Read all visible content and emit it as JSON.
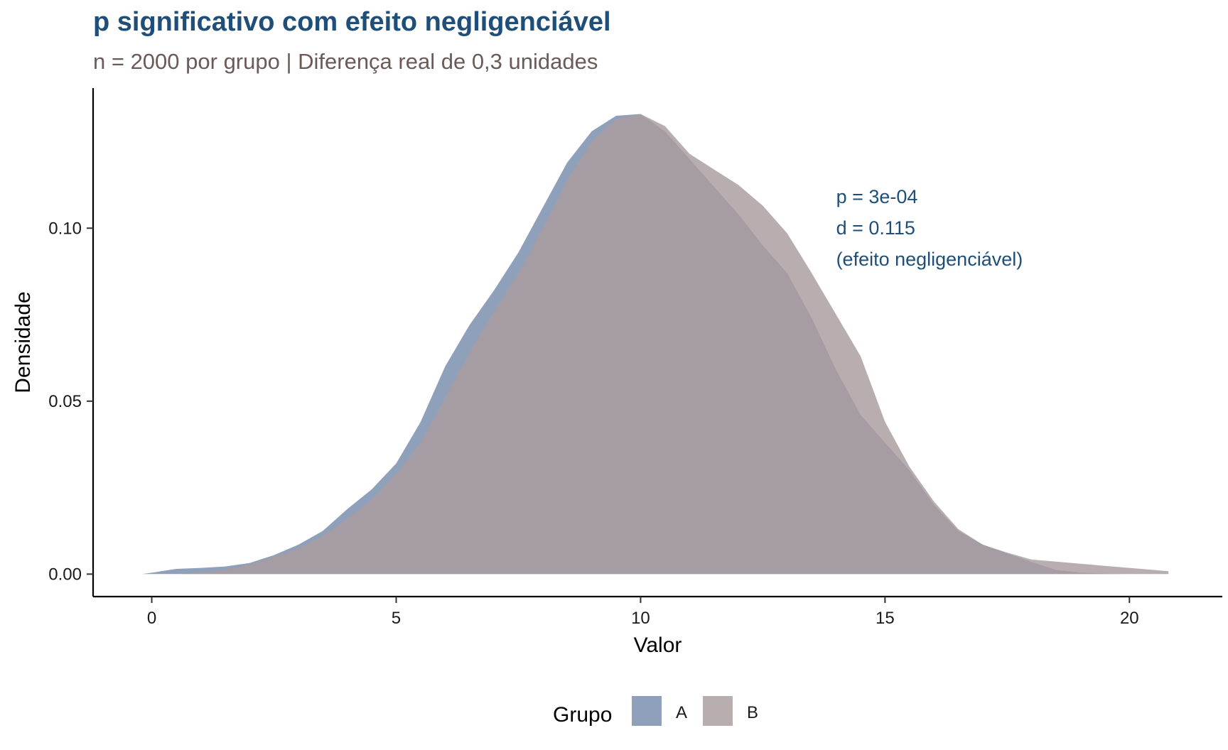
{
  "chart_data": {
    "type": "area",
    "title": "p significativo com efeito negligenciável",
    "subtitle": "n = 2000 por grupo | Diferença real de 0,3 unidades",
    "xlabel": "Valor",
    "ylabel": "Densidade",
    "xlim": [
      -1.2,
      21.9
    ],
    "ylim": [
      -0.0065,
      0.1405
    ],
    "x_ticks": [
      0,
      5,
      10,
      15,
      20
    ],
    "x_tick_labels": [
      "0",
      "5",
      "10",
      "15",
      "20"
    ],
    "y_ticks": [
      0.0,
      0.05,
      0.1
    ],
    "y_tick_labels": [
      "0.00",
      "0.05",
      "0.10"
    ],
    "grid": false,
    "legend": {
      "title": "Grupo",
      "position": "bottom"
    },
    "annotations": [
      "p = 3e-04",
      "d = 0.115",
      "(efeito negligenciável)"
    ],
    "series": [
      {
        "name": "A",
        "color": "#7f93b2",
        "points": [
          [
            -0.2,
            0
          ],
          [
            0,
            0.0004
          ],
          [
            0.5,
            0.0015
          ],
          [
            1,
            0.0018
          ],
          [
            1.5,
            0.0022
          ],
          [
            2,
            0.0032
          ],
          [
            2.5,
            0.0055
          ],
          [
            3,
            0.0085
          ],
          [
            3.5,
            0.0125
          ],
          [
            4,
            0.0188
          ],
          [
            4.5,
            0.0245
          ],
          [
            5,
            0.032
          ],
          [
            5.5,
            0.044
          ],
          [
            6,
            0.06
          ],
          [
            6.5,
            0.072
          ],
          [
            7,
            0.082
          ],
          [
            7.5,
            0.093
          ],
          [
            8,
            0.106
          ],
          [
            8.5,
            0.119
          ],
          [
            9,
            0.128
          ],
          [
            9.5,
            0.1325
          ],
          [
            10,
            0.133
          ],
          [
            10.5,
            0.128
          ],
          [
            11,
            0.12
          ],
          [
            11.5,
            0.112
          ],
          [
            12,
            0.104
          ],
          [
            12.5,
            0.095
          ],
          [
            13,
            0.087
          ],
          [
            13.5,
            0.074
          ],
          [
            14,
            0.059
          ],
          [
            14.5,
            0.046
          ],
          [
            15,
            0.038
          ],
          [
            15.5,
            0.03
          ],
          [
            16,
            0.02
          ],
          [
            16.5,
            0.0125
          ],
          [
            17,
            0.0085
          ],
          [
            17.5,
            0.006
          ],
          [
            18,
            0.0035
          ],
          [
            18.5,
            0.0012
          ],
          [
            19,
            0.0004
          ],
          [
            19.5,
            0.0001
          ],
          [
            20,
            0
          ]
        ]
      },
      {
        "name": "B",
        "color": "#a99c9e",
        "points": [
          [
            0.6,
            0
          ],
          [
            1,
            0.0004
          ],
          [
            1.5,
            0.0012
          ],
          [
            2,
            0.0028
          ],
          [
            2.5,
            0.005
          ],
          [
            3,
            0.0075
          ],
          [
            3.5,
            0.011
          ],
          [
            4,
            0.016
          ],
          [
            4.5,
            0.0215
          ],
          [
            5,
            0.029
          ],
          [
            5.5,
            0.038
          ],
          [
            6,
            0.051
          ],
          [
            6.5,
            0.064
          ],
          [
            7,
            0.076
          ],
          [
            7.5,
            0.087
          ],
          [
            8,
            0.1
          ],
          [
            8.5,
            0.114
          ],
          [
            9,
            0.125
          ],
          [
            9.5,
            0.1315
          ],
          [
            10,
            0.133
          ],
          [
            10.5,
            0.1295
          ],
          [
            11,
            0.1215
          ],
          [
            11.5,
            0.117
          ],
          [
            12,
            0.1125
          ],
          [
            12.5,
            0.1065
          ],
          [
            13,
            0.0985
          ],
          [
            13.5,
            0.087
          ],
          [
            14,
            0.075
          ],
          [
            14.5,
            0.063
          ],
          [
            15,
            0.044
          ],
          [
            15.5,
            0.031
          ],
          [
            16,
            0.021
          ],
          [
            16.5,
            0.013
          ],
          [
            17,
            0.0085
          ],
          [
            17.5,
            0.0062
          ],
          [
            18,
            0.0042
          ],
          [
            18.5,
            0.0036
          ],
          [
            19,
            0.003
          ],
          [
            19.5,
            0.0024
          ],
          [
            20,
            0.0018
          ],
          [
            20.5,
            0.0012
          ],
          [
            20.8,
            0.0008
          ]
        ]
      }
    ]
  }
}
